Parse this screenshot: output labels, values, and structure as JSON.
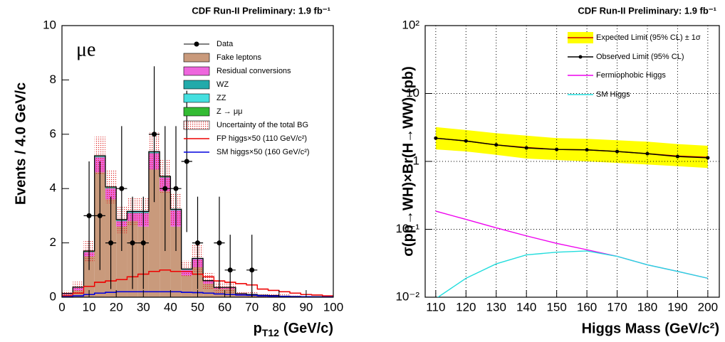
{
  "chart_data": [
    {
      "type": "histogram",
      "title": "CDF Run-II Preliminary:  1.9 fb⁻¹",
      "annotation": "μe",
      "y_label": "Events / 4.0 GeV/c",
      "x_label": "p",
      "x_label_sub": "T12",
      "x_label_unit": "(GeV/c)",
      "xlim": [
        0,
        100
      ],
      "xticks": [
        0,
        10,
        20,
        30,
        40,
        50,
        60,
        70,
        80,
        90,
        100
      ],
      "ylim": [
        0,
        10
      ],
      "yticks": [
        0,
        2,
        4,
        6,
        8,
        10
      ],
      "bins": [
        0,
        4,
        8,
        12,
        16,
        20,
        24,
        28,
        32,
        36,
        40,
        44,
        48,
        52,
        56,
        60,
        64,
        68,
        72,
        76,
        80,
        84,
        88,
        92,
        96,
        100
      ],
      "data": {
        "name": "Data",
        "color": "#000000",
        "x": [
          10,
          14,
          18,
          22,
          26,
          30,
          34,
          38,
          42,
          46,
          50,
          58,
          62,
          70
        ],
        "values": [
          3,
          3,
          2,
          4,
          2,
          2,
          6,
          4,
          4,
          5,
          2,
          2,
          1,
          1
        ],
        "errors": [
          2.0,
          2.0,
          1.7,
          2.3,
          1.7,
          1.7,
          2.5,
          2.3,
          2.3,
          2.6,
          1.7,
          1.7,
          1.3,
          1.3
        ]
      },
      "stack": [
        {
          "name": "Fake leptons",
          "color": "#c99a7c",
          "values": [
            0.1,
            0.25,
            1.5,
            4.6,
            3.6,
            2.6,
            2.8,
            2.6,
            4.7,
            3.9,
            2.6,
            0.8,
            1.1,
            0.5,
            0.3,
            0.3,
            0.1,
            0.08,
            0.06,
            0.05,
            0.04,
            0.03,
            0.02,
            0.02,
            0.01
          ]
        },
        {
          "name": "Residual conversions",
          "color": "#ee66dd",
          "values": [
            0.04,
            0.1,
            0.15,
            0.55,
            0.4,
            0.2,
            0.3,
            0.5,
            0.6,
            0.5,
            0.6,
            0.2,
            0.3,
            0.1,
            0.05,
            0.05,
            0.02,
            0.01,
            0.01,
            0.01,
            0,
            0,
            0,
            0,
            0
          ]
        },
        {
          "name": "WZ",
          "color": "#22aaaa",
          "values": [
            0,
            0.01,
            0.02,
            0.03,
            0.03,
            0.03,
            0.03,
            0.03,
            0.03,
            0.02,
            0.02,
            0.02,
            0.02,
            0.01,
            0.01,
            0.01,
            0.01,
            0.01,
            0,
            0,
            0,
            0,
            0,
            0,
            0
          ]
        },
        {
          "name": "ZZ",
          "color": "#44e0e0",
          "values": [
            0,
            0,
            0.01,
            0.01,
            0.01,
            0.01,
            0.01,
            0.01,
            0.01,
            0.01,
            0.01,
            0.01,
            0,
            0,
            0,
            0,
            0,
            0,
            0,
            0,
            0,
            0,
            0,
            0,
            0
          ]
        },
        {
          "name": "Z → μμ",
          "color": "#33bb33",
          "values": [
            0,
            0.01,
            0.02,
            0.02,
            0.02,
            0.02,
            0.02,
            0.02,
            0.02,
            0.02,
            0.01,
            0.01,
            0.01,
            0,
            0,
            0,
            0,
            0,
            0,
            0,
            0,
            0,
            0,
            0,
            0
          ]
        }
      ],
      "uncertainty": {
        "name": "Uncertainty of the total BG",
        "color": "#dd2222",
        "values": [
          0.1,
          0.2,
          0.4,
          0.7,
          0.6,
          0.5,
          0.5,
          0.5,
          0.7,
          0.6,
          0.6,
          0.3,
          0.5,
          0.3,
          0.2,
          0.2,
          0.1,
          0.1,
          0.08,
          0.07,
          0.06,
          0.05,
          0.04,
          0.03,
          0.02
        ]
      },
      "lines": [
        {
          "name": "FP higgs×50 (110 GeV/c²)",
          "color": "#ee0000",
          "values": [
            0.05,
            0.15,
            0.4,
            0.55,
            0.6,
            0.65,
            0.75,
            0.85,
            0.95,
            1.0,
            0.95,
            0.95,
            0.85,
            0.75,
            0.6,
            0.55,
            0.5,
            0.45,
            0.3,
            0.25,
            0.2,
            0.15,
            0.1,
            0.08,
            0.05
          ]
        },
        {
          "name": "SM higgs×50 (160 GeV/c²)",
          "color": "#0000dd",
          "values": [
            0.02,
            0.05,
            0.1,
            0.15,
            0.18,
            0.2,
            0.2,
            0.2,
            0.2,
            0.2,
            0.2,
            0.18,
            0.17,
            0.15,
            0.12,
            0.1,
            0.08,
            0.07,
            0.05,
            0.04,
            0.03,
            0.02,
            0.02,
            0.01,
            0.01
          ]
        }
      ]
    },
    {
      "type": "line",
      "title": "CDF Run-II Preliminary:  1.9 fb⁻¹",
      "y_label": "σ(pp̄→WH)×Br(H→WW) (pb)",
      "x_label": "Higgs Mass (GeV/c²)",
      "ylog": true,
      "grid": true,
      "xlim": [
        106.5,
        203.8
      ],
      "xticks": [
        110,
        120,
        130,
        140,
        150,
        160,
        170,
        180,
        190,
        200
      ],
      "ylim": [
        0.01,
        100
      ],
      "yticks": [
        {
          "value": 0.01,
          "label": "10⁻²"
        },
        {
          "value": 0.1,
          "label": "10⁻¹"
        },
        1,
        10,
        {
          "value": 100,
          "label": "10²"
        }
      ],
      "x": [
        110,
        120,
        130,
        140,
        150,
        160,
        170,
        180,
        190,
        200
      ],
      "series": [
        {
          "name": "Expected Limit (95% CL) ± 1σ",
          "color": "#cc0000",
          "band_color": "#ffff00",
          "values": [
            2.2,
            2.0,
            1.75,
            1.6,
            1.5,
            1.48,
            1.4,
            1.3,
            1.2,
            1.15
          ],
          "lower": [
            1.5,
            1.4,
            1.25,
            1.1,
            1.05,
            1.0,
            0.95,
            0.9,
            0.85,
            0.8
          ],
          "upper": [
            3.2,
            2.9,
            2.6,
            2.4,
            2.2,
            2.15,
            2.05,
            1.95,
            1.8,
            1.7
          ]
        },
        {
          "name": "Observed Limit (95% CL)",
          "color": "#000000",
          "markers": true,
          "values": [
            2.2,
            2.0,
            1.75,
            1.58,
            1.5,
            1.48,
            1.4,
            1.3,
            1.18,
            1.13
          ]
        },
        {
          "name": "Fermiophobic Higgs",
          "color": "#ee00ee",
          "values": [
            0.185,
            0.14,
            0.105,
            0.08,
            0.062,
            0.05,
            0.04,
            0.03,
            0.024,
            0.019
          ]
        },
        {
          "name": "SM Higgs",
          "color": "#22dddd",
          "values": [
            0.0095,
            0.019,
            0.031,
            0.042,
            0.046,
            0.048,
            0.04,
            0.03,
            0.024,
            0.019
          ]
        }
      ]
    }
  ]
}
